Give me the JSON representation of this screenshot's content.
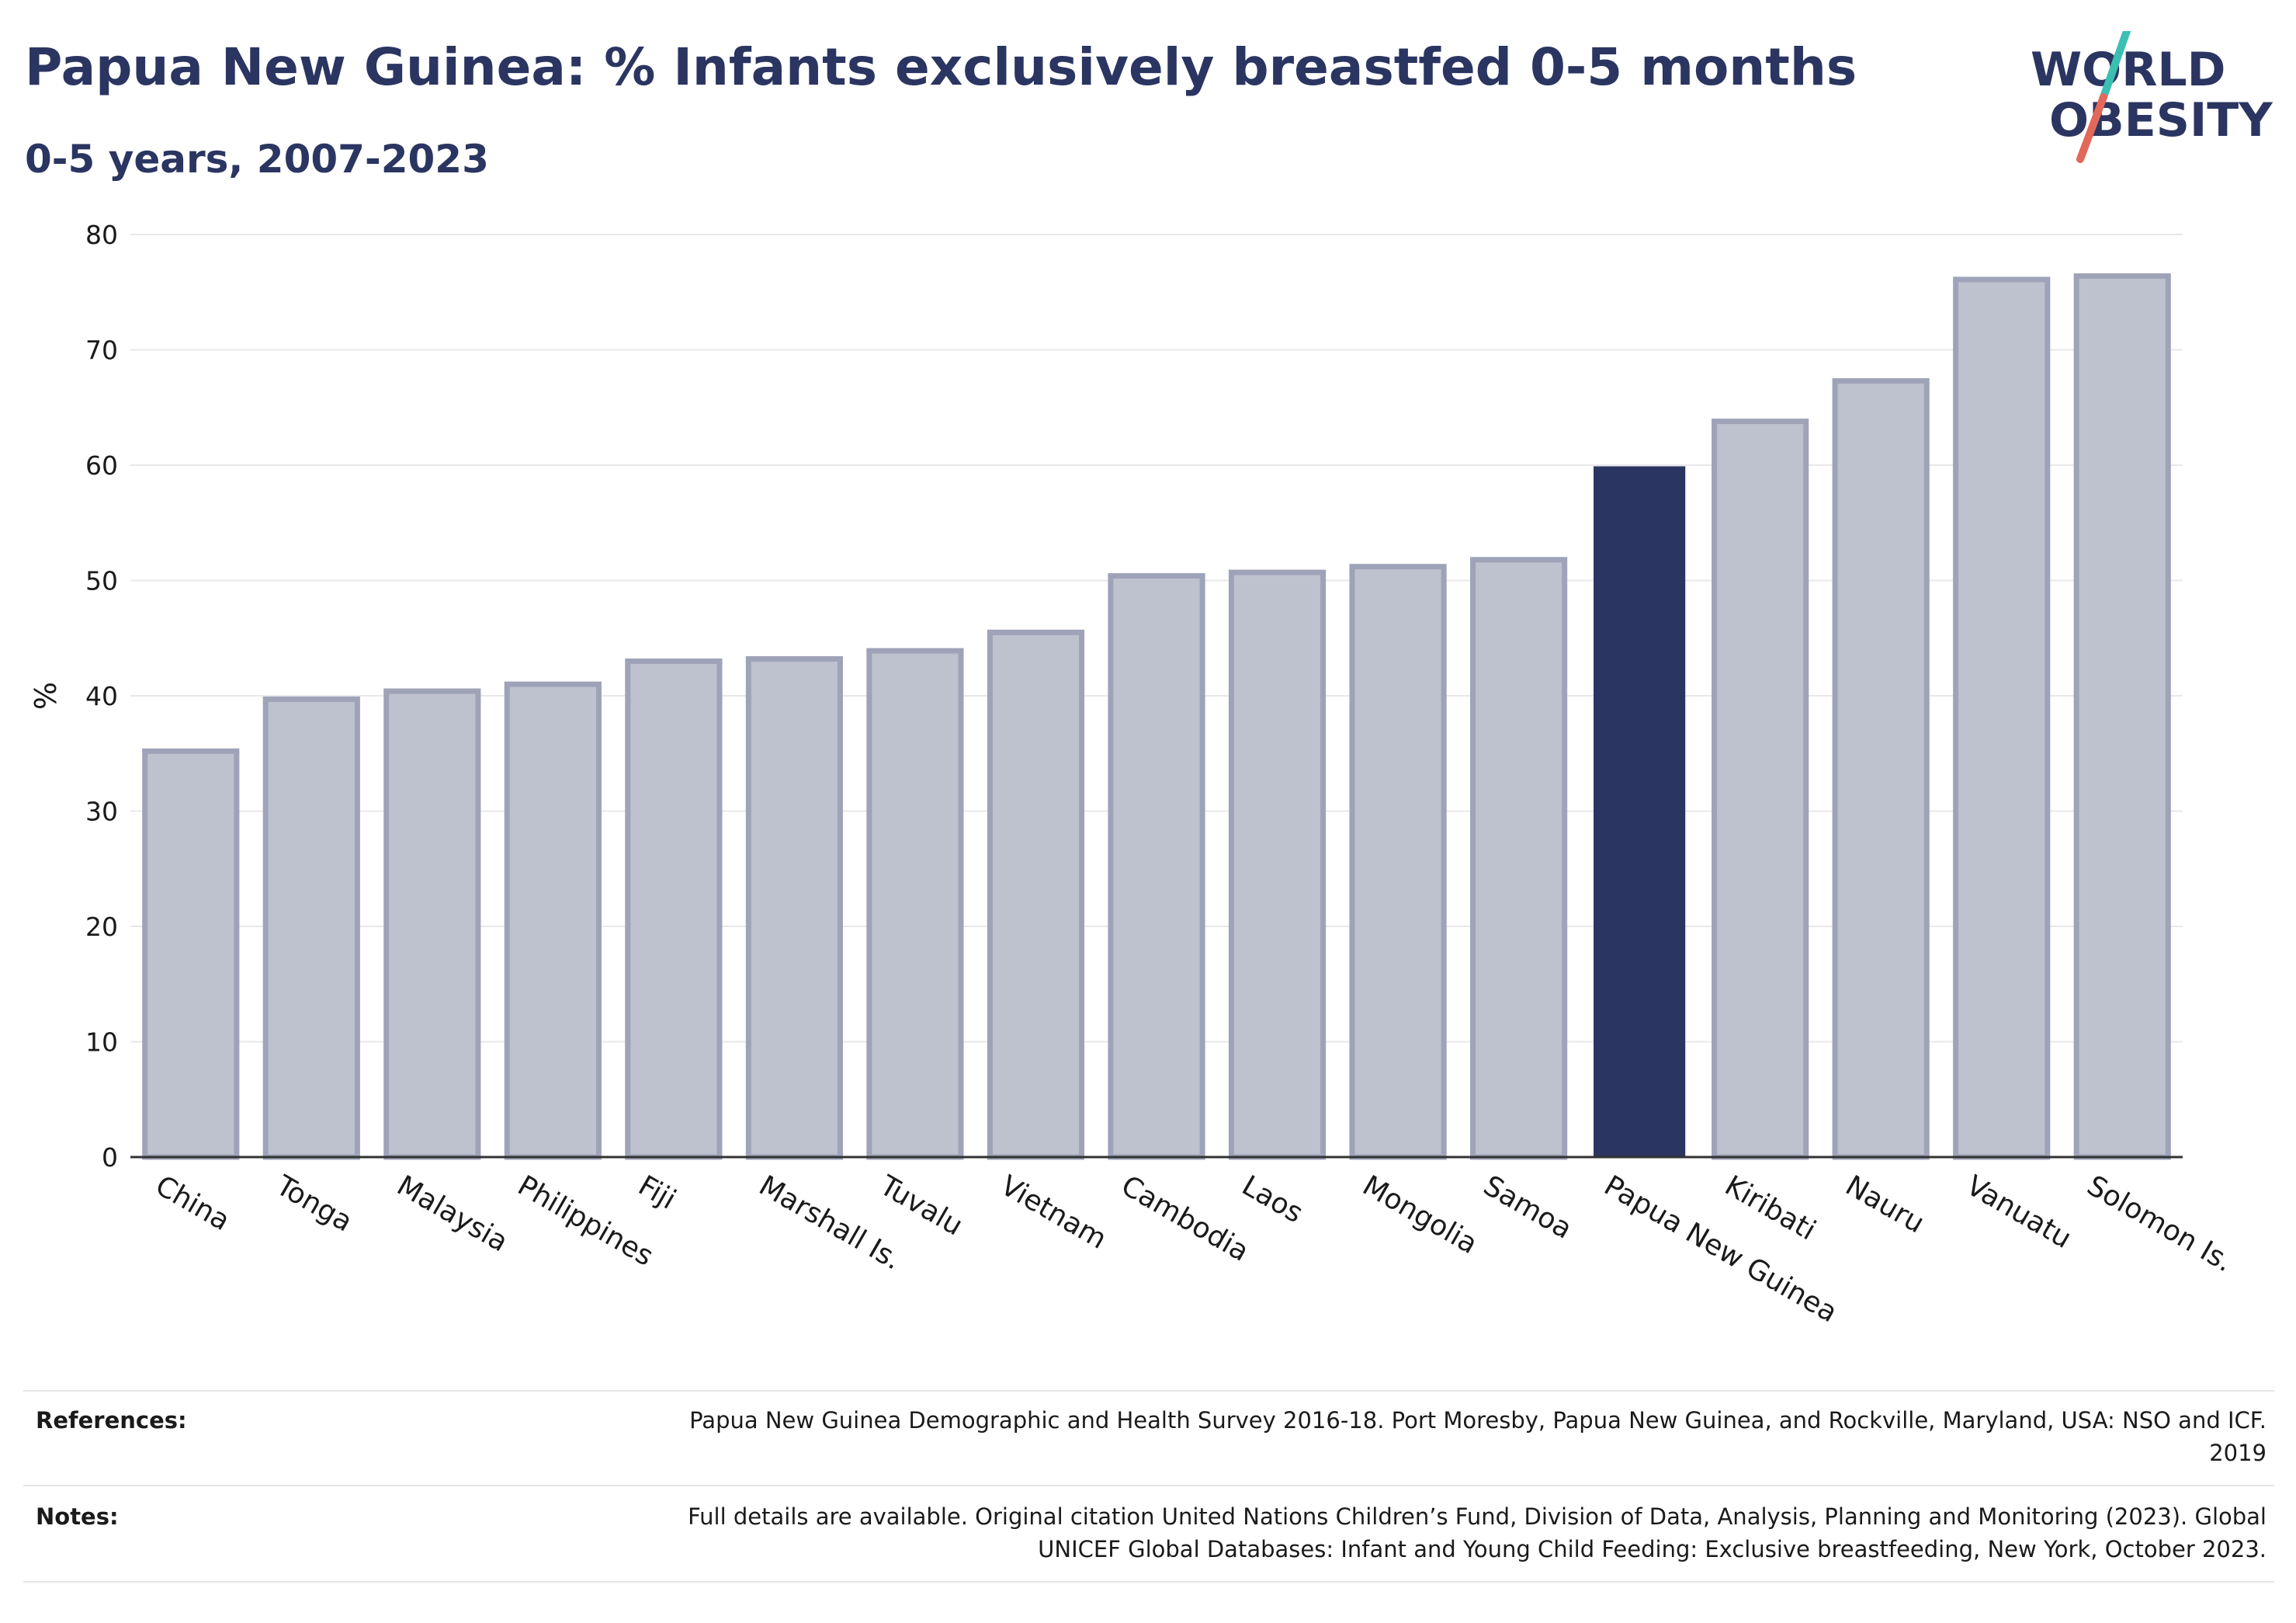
{
  "header": {
    "title": "Papua New Guinea: % Infants exclusively breastfed 0-5 months",
    "subtitle": "0-5 years, 2007-2023"
  },
  "logo": {
    "line1": "WORLD",
    "line2": "OBESITY"
  },
  "colors": {
    "highlight": "#2b3561",
    "bar_fill": "#bec1ce",
    "bar_stroke": "#9ea3b8",
    "grid": "#e8e8ec",
    "logo_text": "#2b3561",
    "logo_slash_top": "#3bbfb3",
    "logo_slash_bottom": "#e2685a"
  },
  "chart_data": {
    "type": "bar",
    "title": "Papua New Guinea: % Infants exclusively breastfed 0-5 months",
    "subtitle": "0-5 years, 2007-2023",
    "ylabel": "%",
    "xlabel": "",
    "ylim": [
      0,
      80
    ],
    "yticks": [
      0,
      10,
      20,
      30,
      40,
      50,
      60,
      70,
      80
    ],
    "grid": true,
    "highlight": "Papua New Guinea",
    "categories": [
      "China",
      "Tonga",
      "Malaysia",
      "Philippines",
      "Fiji",
      "Marshall Is.",
      "Tuvalu",
      "Vietnam",
      "Cambodia",
      "Laos",
      "Mongolia",
      "Samoa",
      "Papua New Guinea",
      "Kiribati",
      "Nauru",
      "Vanuatu",
      "Solomon Is."
    ],
    "values": [
      35.2,
      39.7,
      40.4,
      41.0,
      43.0,
      43.2,
      43.9,
      45.5,
      50.4,
      50.7,
      51.2,
      51.8,
      59.9,
      63.8,
      67.3,
      76.1,
      76.4
    ]
  },
  "footer": {
    "references_label": "References:",
    "references_text": "Papua New Guinea Demographic and Health Survey 2016-18. Port Moresby, Papua New Guinea, and Rockville, Maryland, USA: NSO and ICF. 2019",
    "notes_label": "Notes:",
    "notes_text": "Full details are available. Original citation United Nations Children’s Fund, Division of Data, Analysis, Planning and Monitoring (2023). Global UNICEF Global Databases: Infant and Young Child Feeding: Exclusive breastfeeding, New York, October 2023."
  }
}
